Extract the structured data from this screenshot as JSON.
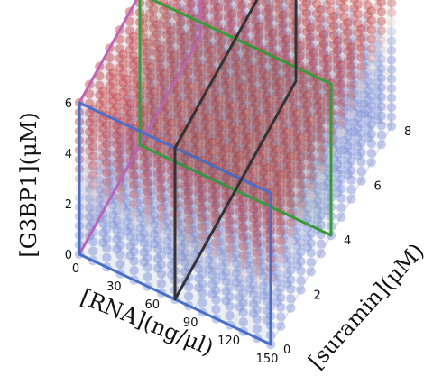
{
  "chart_data": {
    "type": "scatter",
    "subtype": "3d-scatter-phase-diagram",
    "title": "",
    "xlabel": "[RNA](ng/μl)",
    "ylabel": "[suramin](μM)",
    "zlabel": "[G3BP1](μM)",
    "xlim": [
      0,
      150
    ],
    "ylim": [
      0,
      8
    ],
    "zlim": [
      0,
      6
    ],
    "xticks": [
      "0",
      "30",
      "60",
      "90",
      "120",
      "150"
    ],
    "yticks": [
      "0",
      "2",
      "4",
      "6",
      "8"
    ],
    "zticks": [
      "0",
      "2",
      "4",
      "6"
    ],
    "grid": true,
    "colors": {
      "low": "#6f86d6",
      "mid": "#e8d8d8",
      "high": "#c0302e"
    },
    "color_meaning": "blue = no condensate (low G3BP1), red = condensate (high G3BP1)",
    "transition_G3BP1_at_suramin_0": 2.6,
    "transition_G3BP1_at_suramin_8": 4.4,
    "slice_planes": [
      {
        "name": "magenta",
        "axis": "x",
        "at": 0,
        "color": "#c064b8"
      },
      {
        "name": "green",
        "axis": "y",
        "at": 4,
        "color": "#3a9a3a"
      },
      {
        "name": "blue",
        "axis": "y",
        "at": 0,
        "color": "#4a6fc8"
      },
      {
        "name": "black",
        "axis": "x",
        "at": 75,
        "color": "#333333"
      }
    ]
  }
}
